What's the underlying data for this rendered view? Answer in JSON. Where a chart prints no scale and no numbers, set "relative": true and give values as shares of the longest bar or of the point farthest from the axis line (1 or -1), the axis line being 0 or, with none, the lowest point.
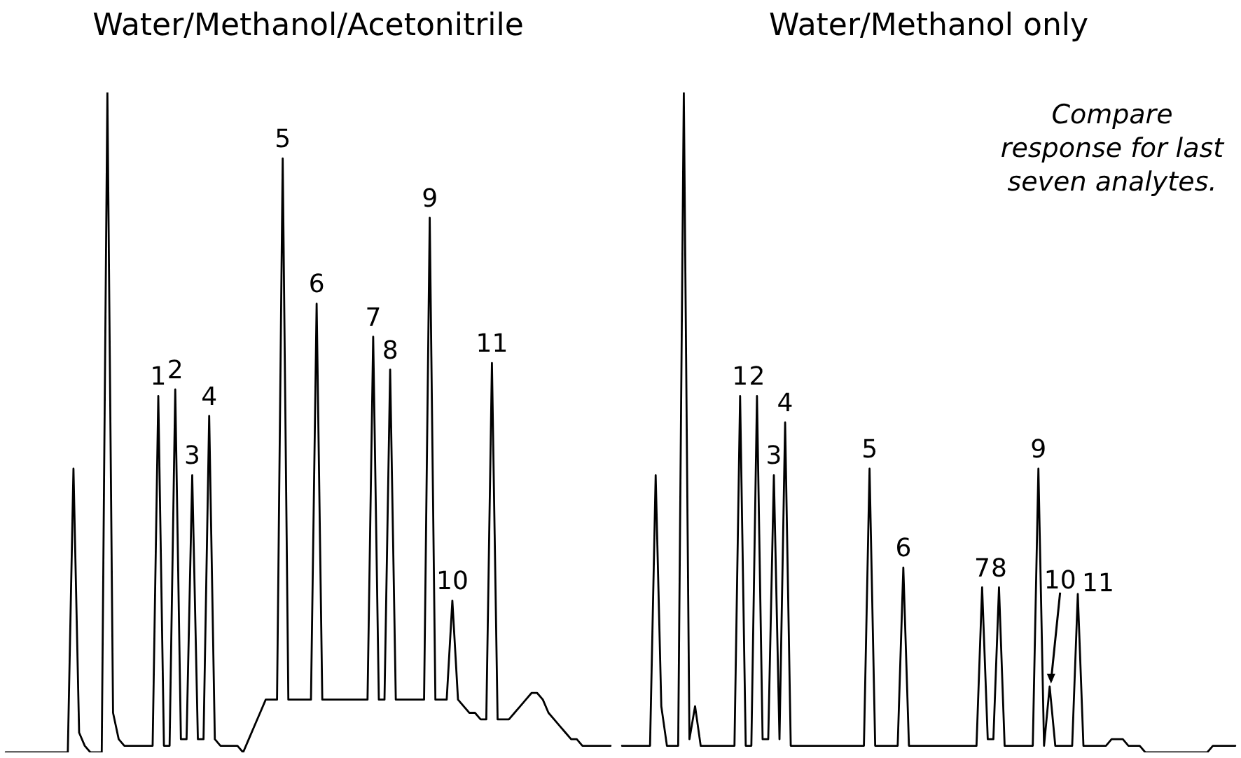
{
  "chart_data": [
    {
      "type": "line",
      "title": "Water/Methanol/Acetonitrile",
      "relative": true,
      "color": "#000000",
      "annotations": [
        {
          "text": "1",
          "y": 0.54
        },
        {
          "text": "2",
          "y": 0.55
        },
        {
          "text": "3",
          "y": 0.42
        },
        {
          "text": "4",
          "y": 0.51
        },
        {
          "text": "5",
          "y": 0.9
        },
        {
          "text": "6",
          "y": 0.68
        },
        {
          "text": "7",
          "y": 0.63
        },
        {
          "text": "8",
          "y": 0.58
        },
        {
          "text": "9",
          "y": 0.81
        },
        {
          "text": "10",
          "y": 0.23
        },
        {
          "text": "11",
          "y": 0.59
        }
      ],
      "categories": [
        null,
        null,
        null,
        null,
        null,
        null,
        null,
        null,
        null,
        null,
        null,
        null,
        null,
        null,
        null,
        null,
        null,
        null,
        null,
        null,
        null,
        null,
        null,
        null,
        null,
        null,
        null,
        null,
        null,
        null,
        null,
        null,
        null,
        null,
        null,
        null,
        null,
        null,
        null,
        null,
        null,
        null,
        null,
        null,
        null,
        null,
        null,
        null,
        null,
        null,
        null,
        null,
        null,
        null,
        null,
        null,
        null,
        null,
        null,
        null,
        null,
        null,
        null,
        null,
        null,
        null,
        null,
        null,
        null,
        null,
        null,
        null,
        null,
        null,
        null,
        null,
        null,
        null,
        null,
        null,
        null,
        null,
        null,
        null,
        null,
        null,
        null,
        null,
        null,
        null,
        null,
        null,
        null,
        null,
        null,
        null,
        null,
        null,
        null,
        null,
        null,
        null,
        null,
        null,
        null,
        null,
        null,
        null
      ],
      "values": [
        0,
        0,
        0,
        0,
        0,
        0,
        0,
        0,
        0,
        0,
        0,
        0,
        0.43,
        0.03,
        0.01,
        0,
        0,
        0,
        1,
        0.06,
        0.02,
        0.01,
        0.01,
        0.01,
        0.01,
        0.01,
        0.01,
        0.54,
        0.01,
        0.01,
        0.55,
        0.02,
        0.02,
        0.42,
        0.02,
        0.02,
        0.51,
        0.02,
        0.01,
        0.01,
        0.01,
        0.01,
        0,
        0.02,
        0.04,
        0.06,
        0.08,
        0.08,
        0.08,
        0.9,
        0.08,
        0.08,
        0.08,
        0.08,
        0.08,
        0.68,
        0.08,
        0.08,
        0.08,
        0.08,
        0.08,
        0.08,
        0.08,
        0.08,
        0.08,
        0.63,
        0.08,
        0.08,
        0.58,
        0.08,
        0.08,
        0.08,
        0.08,
        0.08,
        0.08,
        0.81,
        0.08,
        0.08,
        0.08,
        0.23,
        0.08,
        0.07,
        0.06,
        0.06,
        0.05,
        0.05,
        0.59,
        0.05,
        0.05,
        0.05,
        0.06,
        0.07,
        0.08,
        0.09,
        0.09,
        0.08,
        0.06,
        0.05,
        0.04,
        0.03,
        0.02,
        0.02,
        0.01,
        0.01,
        0.01,
        0.01,
        0.01,
        0.01
      ]
    },
    {
      "type": "line",
      "title": "Water/Methanol only",
      "relative": true,
      "color": "#000000",
      "annotations": [
        "Compare response for last seven analytes.",
        {
          "text": "1",
          "y": 0.54
        },
        {
          "text": "2",
          "y": 0.54
        },
        {
          "text": "3",
          "y": 0.42
        },
        {
          "text": "4",
          "y": 0.5
        },
        {
          "text": "5",
          "y": 0.43
        },
        {
          "text": "6",
          "y": 0.28
        },
        {
          "text": "7",
          "y": 0.25
        },
        {
          "text": "8",
          "y": 0.25
        },
        {
          "text": "9",
          "y": 0.43
        },
        "10",
        "11"
      ],
      "categories": [
        null,
        null,
        null,
        null,
        null,
        null,
        null,
        null,
        null,
        null,
        null,
        null,
        null,
        null,
        null,
        null,
        null,
        null,
        null,
        null,
        null,
        null,
        null,
        null,
        null,
        null,
        null,
        null,
        null,
        null,
        null,
        null,
        null,
        null,
        null,
        null,
        null,
        null,
        null,
        null,
        null,
        null,
        null,
        null,
        null,
        null,
        null,
        null,
        null,
        null,
        null,
        null,
        null,
        null,
        null,
        null,
        null,
        null,
        null,
        null,
        null,
        null,
        null,
        null,
        null,
        null,
        null,
        null,
        null,
        null,
        null,
        null,
        null,
        null,
        null,
        null,
        null,
        null,
        null,
        null,
        null,
        null,
        null,
        null,
        null,
        null,
        null,
        null,
        null,
        null,
        null,
        null,
        null,
        null,
        null,
        null,
        null,
        null,
        null,
        null,
        null,
        null,
        null,
        null,
        null,
        null,
        null,
        null,
        null,
        null
      ],
      "values": [
        0.01,
        0.01,
        0.01,
        0.01,
        0.01,
        0.01,
        0.42,
        0.07,
        0.01,
        0.01,
        0.01,
        1,
        0.02,
        0.07,
        0.01,
        0.01,
        0.01,
        0.01,
        0.01,
        0.01,
        0.01,
        0.54,
        0.01,
        0.01,
        0.54,
        0.02,
        0.02,
        0.42,
        0.02,
        0.5,
        0.01,
        0.01,
        0.01,
        0.01,
        0.01,
        0.01,
        0.01,
        0.01,
        0.01,
        0.01,
        0.01,
        0.01,
        0.01,
        0.01,
        0.43,
        0.01,
        0.01,
        0.01,
        0.01,
        0.01,
        0.28,
        0.01,
        0.01,
        0.01,
        0.01,
        0.01,
        0.01,
        0.01,
        0.01,
        0.01,
        0.01,
        0.01,
        0.01,
        0.01,
        0.25,
        0.02,
        0.02,
        0.25,
        0.01,
        0.01,
        0.01,
        0.01,
        0.01,
        0.01,
        0.43,
        0.01,
        0.1,
        0.01,
        0.01,
        0.01,
        0.01,
        0.24,
        0.01,
        0.01,
        0.01,
        0.01,
        0.01,
        0.02,
        0.02,
        0.02,
        0.01,
        0.01,
        0.01,
        0,
        0,
        0,
        0,
        0,
        0,
        0,
        0,
        0,
        0,
        0,
        0,
        0.01,
        0.01,
        0.01,
        0.01,
        0.01
      ]
    }
  ]
}
